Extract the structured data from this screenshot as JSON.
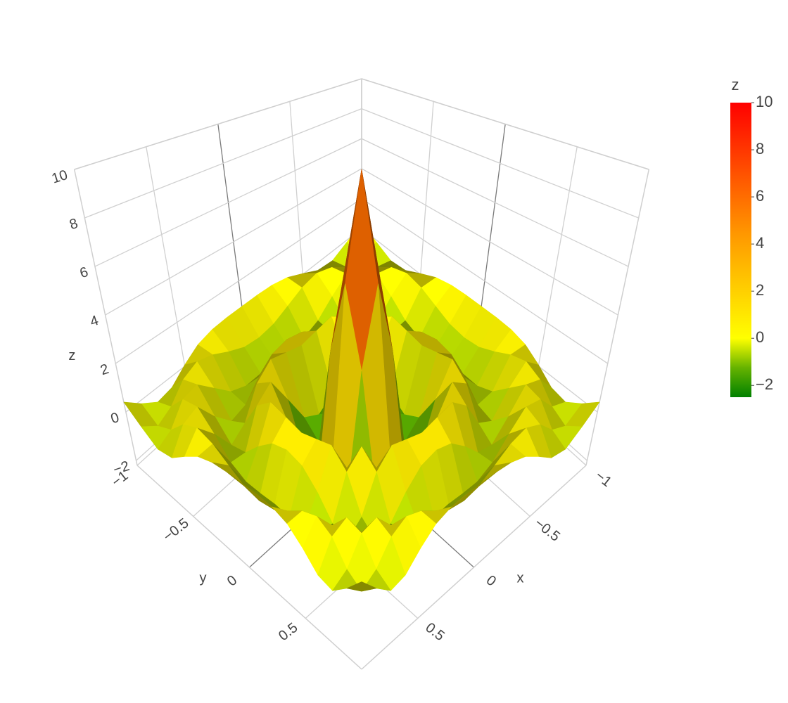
{
  "chart_data": {
    "type": "surface",
    "x": [
      -1,
      -0.875,
      -0.75,
      -0.625,
      -0.5,
      -0.375,
      -0.25,
      -0.125,
      0,
      0.125,
      0.25,
      0.375,
      0.5,
      0.625,
      0.75,
      0.875,
      1
    ],
    "y": [
      -1,
      -0.875,
      -0.75,
      -0.625,
      -0.5,
      -0.375,
      -0.25,
      -0.125,
      0,
      0.125,
      0.25,
      0.375,
      0.5,
      0.625,
      0.75,
      0.875,
      1
    ],
    "z": [
      [
        0.41,
        -0.13,
        -0.56,
        -0.44,
        0.05,
        0.47,
        0.66,
        0.71,
        0.71,
        0.71,
        0.66,
        0.47,
        0.05,
        -0.44,
        -0.56,
        -0.13,
        0.41
      ],
      [
        -0.13,
        -0.58,
        -0.26,
        0.41,
        0.71,
        0.52,
        0.14,
        -0.19,
        -0.29,
        -0.19,
        0.14,
        0.52,
        0.71,
        0.41,
        -0.26,
        -0.58,
        -0.13
      ],
      [
        -0.56,
        -0.26,
        0.52,
        0.67,
        0.04,
        -0.62,
        -0.9,
        -0.89,
        -0.84,
        -0.89,
        -0.9,
        -0.62,
        0.04,
        0.67,
        0.52,
        -0.26,
        -0.56
      ],
      [
        -0.44,
        0.41,
        0.67,
        -0.19,
        -0.87,
        -0.69,
        0,
        0.54,
        0.71,
        0.54,
        0,
        -0.69,
        -0.87,
        -0.19,
        0.67,
        0.41,
        -0.44
      ],
      [
        0.05,
        0.71,
        0.04,
        -0.87,
        -0.46,
        0.71,
        1.28,
        1.11,
        0.94,
        1.11,
        1.28,
        0.71,
        -0.46,
        -0.87,
        0.04,
        0.71,
        0.05
      ],
      [
        0.47,
        0.52,
        -0.62,
        -0.69,
        0.71,
        1.23,
        0.04,
        -1.23,
        -1.64,
        -1.23,
        0.04,
        1.23,
        0.71,
        -0.69,
        -0.62,
        0.52,
        0.47
      ],
      [
        0.66,
        0.14,
        -0.9,
        0,
        1.28,
        0.04,
        -1.96,
        -1.79,
        -1,
        -1.79,
        -1.96,
        0.04,
        1.28,
        0,
        -0.9,
        0.14,
        0.66
      ],
      [
        0.71,
        -0.19,
        -0.89,
        0.54,
        1.11,
        -1.23,
        -1.79,
        2.5,
        5.62,
        2.5,
        -1.79,
        -1.23,
        1.11,
        0.54,
        -0.89,
        -0.19,
        0.71
      ],
      [
        0.71,
        -0.29,
        -0.84,
        0.71,
        0.94,
        -1.64,
        -1,
        5.62,
        10,
        5.62,
        -1,
        -1.64,
        0.94,
        0.71,
        -0.84,
        -0.29,
        0.71
      ],
      [
        0.71,
        -0.19,
        -0.89,
        0.54,
        1.11,
        -1.23,
        -1.79,
        2.5,
        5.62,
        2.5,
        -1.79,
        -1.23,
        1.11,
        0.54,
        -0.89,
        -0.19,
        0.71
      ],
      [
        0.66,
        0.14,
        -0.9,
        0,
        1.28,
        0.04,
        -1.96,
        -1.79,
        -1,
        -1.79,
        -1.96,
        0.04,
        1.28,
        0,
        -0.9,
        0.14,
        0.66
      ],
      [
        0.47,
        0.52,
        -0.62,
        -0.69,
        0.71,
        1.23,
        0.04,
        -1.23,
        -1.64,
        -1.23,
        0.04,
        1.23,
        0.71,
        -0.69,
        -0.62,
        0.52,
        0.47
      ],
      [
        0.05,
        0.71,
        0.04,
        -0.87,
        -0.46,
        0.71,
        1.28,
        1.11,
        0.94,
        1.11,
        1.28,
        0.71,
        -0.46,
        -0.87,
        0.04,
        0.71,
        0.05
      ],
      [
        -0.44,
        0.41,
        0.67,
        -0.19,
        -0.87,
        -0.69,
        0,
        0.54,
        0.71,
        0.54,
        0,
        -0.69,
        -0.87,
        -0.19,
        0.67,
        0.41,
        -0.44
      ],
      [
        -0.56,
        -0.26,
        0.52,
        0.67,
        0.04,
        -0.62,
        -0.9,
        -0.89,
        -0.84,
        -0.89,
        -0.9,
        -0.62,
        0.04,
        0.67,
        0.52,
        -0.26,
        -0.56
      ],
      [
        -0.13,
        -0.58,
        -0.26,
        0.41,
        0.71,
        0.52,
        0.14,
        -0.19,
        -0.29,
        -0.19,
        0.14,
        0.52,
        0.71,
        0.41,
        -0.26,
        -0.58,
        -0.13
      ],
      [
        0.41,
        -0.13,
        -0.56,
        -0.44,
        0.05,
        0.47,
        0.66,
        0.71,
        0.71,
        0.71,
        0.66,
        0.47,
        0.05,
        -0.44,
        -0.56,
        -0.13,
        0.41
      ]
    ],
    "x_label": "x",
    "y_label": "y",
    "z_label": "z",
    "xlim": [
      -1,
      1
    ],
    "ylim": [
      -1,
      1
    ],
    "zlim": [
      -2.2,
      10
    ],
    "xticks": [
      {
        "value": -1,
        "label": "−1"
      },
      {
        "value": -0.5,
        "label": "−0.5"
      },
      0,
      0.5
    ],
    "yticks": [
      {
        "value": -1,
        "label": "−1"
      },
      {
        "value": -0.5,
        "label": "−0.5"
      },
      0,
      0.5
    ],
    "zticks": [
      {
        "value": -2,
        "label": "−2"
      },
      0,
      2,
      4,
      6,
      8,
      10
    ],
    "colorscale": [
      [
        0,
        "#008000"
      ],
      [
        0.1,
        "#66b300"
      ],
      [
        0.2,
        "#ffff00"
      ],
      [
        0.36,
        "#ffd000"
      ],
      [
        0.55,
        "#ff9900"
      ],
      [
        1,
        "#ff0000"
      ]
    ],
    "colorbar": {
      "title": "z",
      "clim": [
        -2.5,
        10
      ],
      "ticks": [
        {
          "value": -2,
          "label": "−2"
        },
        0,
        2,
        4,
        6,
        8,
        10
      ]
    }
  }
}
